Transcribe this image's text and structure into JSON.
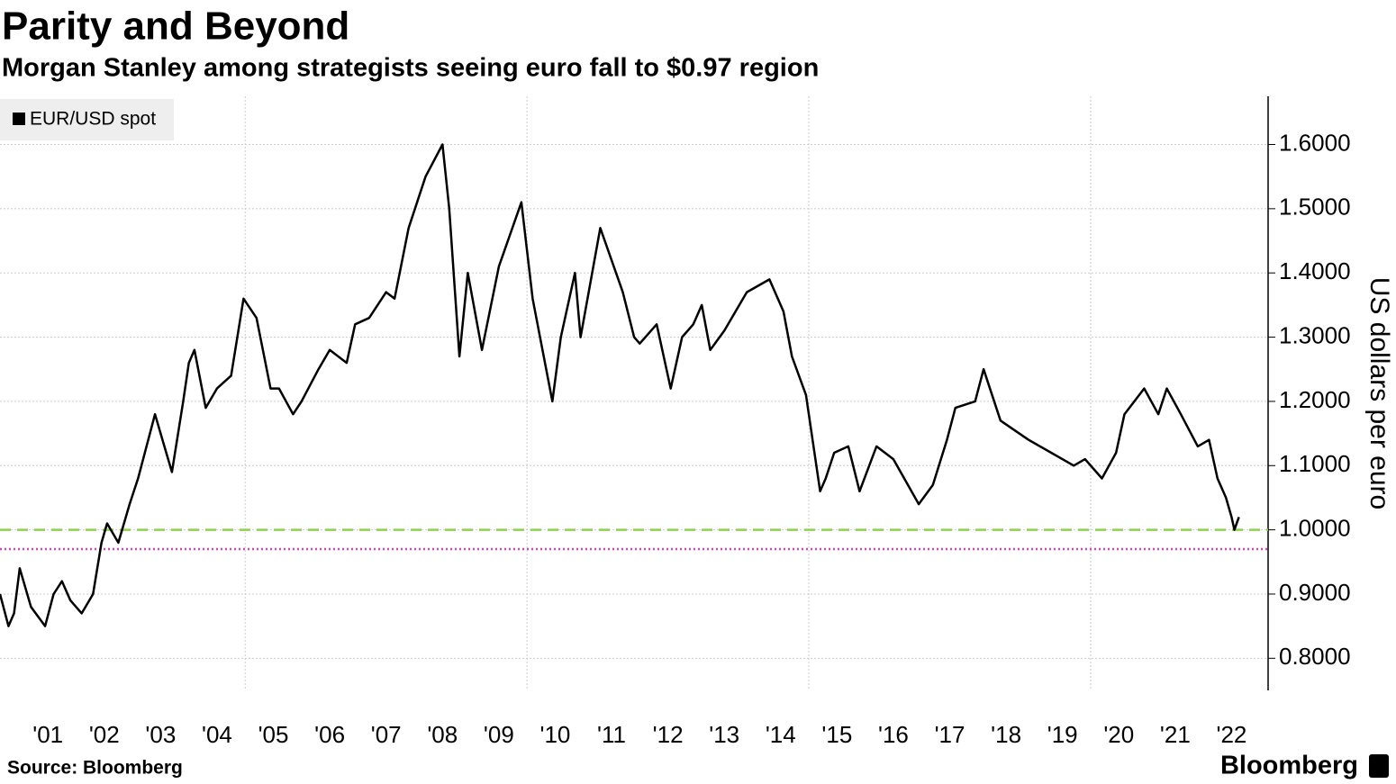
{
  "chart_data": {
    "type": "line",
    "title": "Parity and Beyond",
    "subtitle": "Morgan Stanley among strategists seeing euro fall to $0.97 region",
    "y_axis_label": "US dollars per euro",
    "source": "Source: Bloomberg",
    "brand": "Bloomberg",
    "series": [
      {
        "name": "EUR/USD spot",
        "color": "#000000",
        "x": [
          2000.65,
          2000.8,
          2000.9,
          2001.0,
          2001.2,
          2001.45,
          2001.6,
          2001.75,
          2001.9,
          2002.1,
          2002.3,
          2002.45,
          2002.55,
          2002.75,
          2002.95,
          2003.1,
          2003.4,
          2003.6,
          2003.7,
          2003.9,
          2004.0,
          2004.1,
          2004.3,
          2004.5,
          2004.75,
          2004.97,
          2005.2,
          2005.45,
          2005.6,
          2005.85,
          2006.0,
          2006.3,
          2006.5,
          2006.8,
          2006.95,
          2007.2,
          2007.5,
          2007.65,
          2007.9,
          2008.2,
          2008.5,
          2008.62,
          2008.8,
          2008.95,
          2009.2,
          2009.5,
          2009.9,
          2010.1,
          2010.45,
          2010.6,
          2010.85,
          2010.95,
          2011.3,
          2011.7,
          2011.9,
          2012.0,
          2012.3,
          2012.55,
          2012.75,
          2012.95,
          2013.1,
          2013.25,
          2013.5,
          2013.9,
          2014.3,
          2014.55,
          2014.7,
          2014.95,
          2015.2,
          2015.3,
          2015.45,
          2015.7,
          2015.9,
          2016.2,
          2016.5,
          2016.95,
          2017.2,
          2017.45,
          2017.6,
          2017.95,
          2018.1,
          2018.4,
          2018.9,
          2019.3,
          2019.7,
          2019.9,
          2020.2,
          2020.45,
          2020.6,
          2020.95,
          2021.2,
          2021.35,
          2021.6,
          2021.9,
          2022.1,
          2022.25,
          2022.4,
          2022.5,
          2022.55,
          2022.63
        ],
        "values": [
          0.9,
          0.85,
          0.87,
          0.94,
          0.88,
          0.85,
          0.9,
          0.92,
          0.89,
          0.87,
          0.9,
          0.98,
          1.01,
          0.98,
          1.04,
          1.08,
          1.18,
          1.12,
          1.09,
          1.2,
          1.26,
          1.28,
          1.19,
          1.22,
          1.24,
          1.36,
          1.33,
          1.22,
          1.22,
          1.18,
          1.2,
          1.25,
          1.28,
          1.26,
          1.32,
          1.33,
          1.37,
          1.36,
          1.47,
          1.55,
          1.6,
          1.5,
          1.27,
          1.4,
          1.28,
          1.41,
          1.51,
          1.36,
          1.2,
          1.3,
          1.4,
          1.3,
          1.47,
          1.37,
          1.3,
          1.29,
          1.32,
          1.22,
          1.3,
          1.32,
          1.35,
          1.28,
          1.31,
          1.37,
          1.39,
          1.34,
          1.27,
          1.21,
          1.06,
          1.08,
          1.12,
          1.13,
          1.06,
          1.13,
          1.11,
          1.04,
          1.07,
          1.14,
          1.19,
          1.2,
          1.25,
          1.17,
          1.14,
          1.12,
          1.1,
          1.11,
          1.08,
          1.12,
          1.18,
          1.22,
          1.18,
          1.22,
          1.18,
          1.13,
          1.14,
          1.08,
          1.05,
          1.02,
          1.0,
          1.02
        ]
      }
    ],
    "reference_lines": [
      {
        "value": 1.0,
        "color": "#8fd14f",
        "style": "dashed"
      },
      {
        "value": 0.97,
        "color": "#e040c0",
        "style": "dotted"
      }
    ],
    "xlim": [
      2000.65,
      2023.1
    ],
    "xticks": [
      {
        "value": 2001.5,
        "label": "'01"
      },
      {
        "value": 2002.5,
        "label": "'02"
      },
      {
        "value": 2003.5,
        "label": "'03"
      },
      {
        "value": 2004.5,
        "label": "'04"
      },
      {
        "value": 2005.5,
        "label": "'05"
      },
      {
        "value": 2006.5,
        "label": "'06"
      },
      {
        "value": 2007.5,
        "label": "'07"
      },
      {
        "value": 2008.5,
        "label": "'08"
      },
      {
        "value": 2009.5,
        "label": "'09"
      },
      {
        "value": 2010.5,
        "label": "'10"
      },
      {
        "value": 2011.5,
        "label": "'11"
      },
      {
        "value": 2012.5,
        "label": "'12"
      },
      {
        "value": 2013.5,
        "label": "'13"
      },
      {
        "value": 2014.5,
        "label": "'14"
      },
      {
        "value": 2015.5,
        "label": "'15"
      },
      {
        "value": 2016.5,
        "label": "'16"
      },
      {
        "value": 2017.5,
        "label": "'17"
      },
      {
        "value": 2018.5,
        "label": "'18"
      },
      {
        "value": 2019.5,
        "label": "'19"
      },
      {
        "value": 2020.5,
        "label": "'20"
      },
      {
        "value": 2021.5,
        "label": "'21"
      },
      {
        "value": 2022.5,
        "label": "'22"
      }
    ],
    "xgrid": [
      2005,
      2010,
      2015,
      2020
    ],
    "ylim": [
      0.75,
      1.675
    ],
    "yticks": [
      {
        "value": 0.8,
        "label": "0.8000"
      },
      {
        "value": 0.9,
        "label": "0.9000"
      },
      {
        "value": 1.0,
        "label": "1.0000"
      },
      {
        "value": 1.1,
        "label": "1.1000"
      },
      {
        "value": 1.2,
        "label": "1.2000"
      },
      {
        "value": 1.3,
        "label": "1.3000"
      },
      {
        "value": 1.4,
        "label": "1.4000"
      },
      {
        "value": 1.5,
        "label": "1.5000"
      },
      {
        "value": 1.6,
        "label": "1.6000"
      }
    ],
    "grid": true
  }
}
